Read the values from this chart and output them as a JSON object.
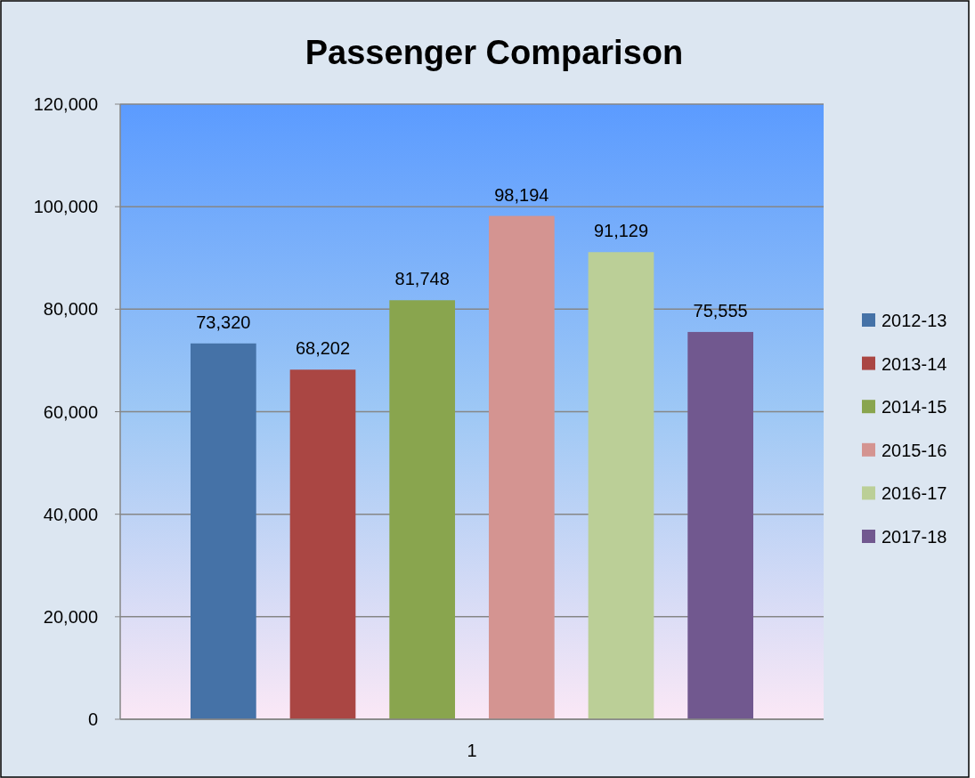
{
  "chart_data": {
    "type": "bar",
    "title": "Passenger Comparison",
    "categories": [
      "1"
    ],
    "series": [
      {
        "name": "2012-13",
        "color": "#4572a7",
        "values": [
          73320
        ],
        "value_labels": [
          "73,320"
        ]
      },
      {
        "name": "2013-14",
        "color": "#aa4643",
        "values": [
          68202
        ],
        "value_labels": [
          "68,202"
        ]
      },
      {
        "name": "2014-15",
        "color": "#89a54e",
        "values": [
          81748
        ],
        "value_labels": [
          "81,748"
        ]
      },
      {
        "name": "2015-16",
        "color": "#d49491",
        "values": [
          98194
        ],
        "value_labels": [
          "98,194"
        ]
      },
      {
        "name": "2016-17",
        "color": "#bbcf97",
        "values": [
          91129
        ],
        "value_labels": [
          "91,129"
        ]
      },
      {
        "name": "2017-18",
        "color": "#71588f",
        "values": [
          75555
        ],
        "value_labels": [
          "75,555"
        ]
      }
    ],
    "ylim": [
      0,
      120000
    ],
    "yticks": [
      {
        "value": 0,
        "label": "0"
      },
      {
        "value": 20000,
        "label": "20,000"
      },
      {
        "value": 40000,
        "label": "40,000"
      },
      {
        "value": 60000,
        "label": "60,000"
      },
      {
        "value": 80000,
        "label": "80,000"
      },
      {
        "value": 100000,
        "label": "100,000"
      },
      {
        "value": 120000,
        "label": "120,000"
      }
    ],
    "grid": "y",
    "legend": "right"
  }
}
